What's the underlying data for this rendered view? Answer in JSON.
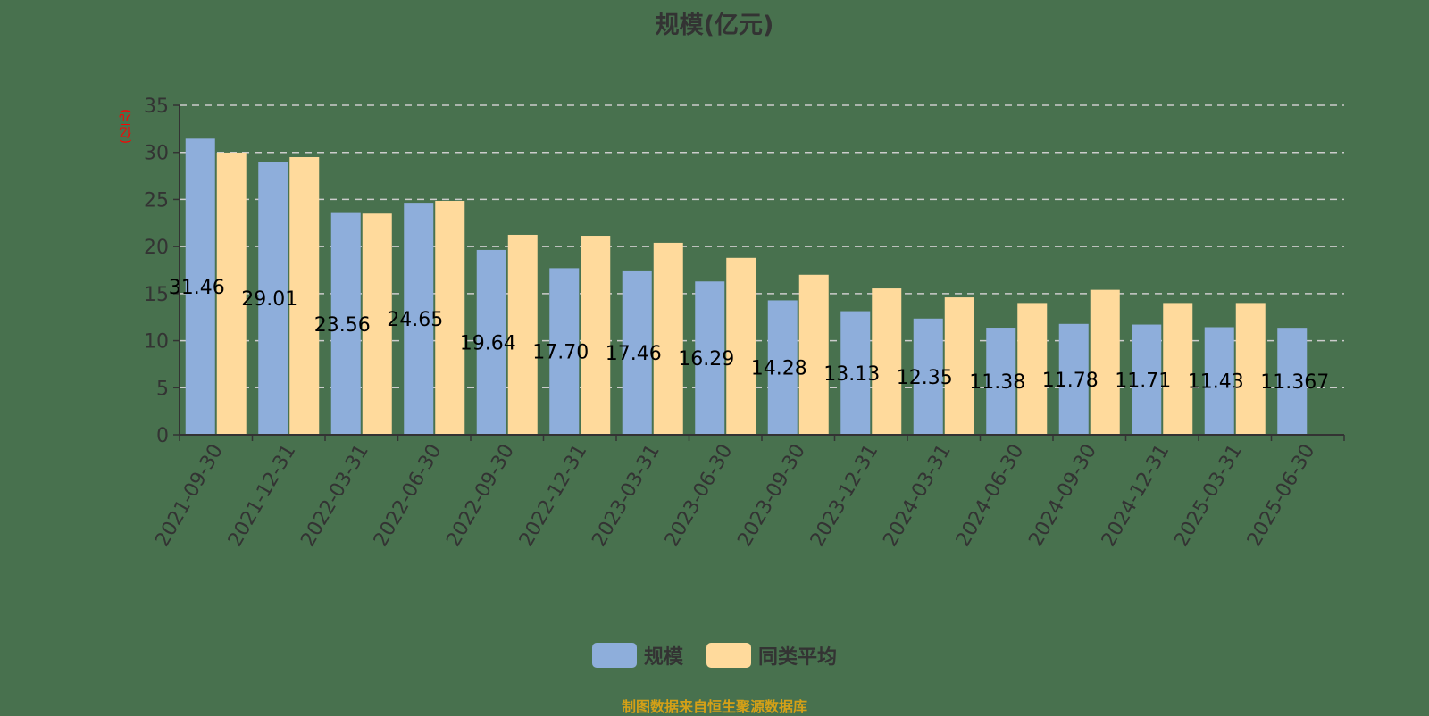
{
  "title": "规模(亿元)",
  "y_unit_label": "(亿元)",
  "legend": {
    "items": [
      {
        "label": "规模",
        "color": "#8eaedb"
      },
      {
        "label": "同类平均",
        "color": "#ffda9c"
      }
    ]
  },
  "source": "制图数据来自恒生聚源数据库",
  "colors": {
    "background": "#48714e",
    "grid": "#cccccc",
    "axis": "#333333",
    "label": "#000000"
  },
  "chart_data": {
    "type": "bar",
    "title": "规模(亿元)",
    "xlabel": "",
    "ylabel": "(亿元)",
    "ylim": [
      0,
      35
    ],
    "yticks": [
      0,
      5,
      10,
      15,
      20,
      25,
      30,
      35
    ],
    "grid": true,
    "legend_position": "bottom",
    "categories": [
      "2021-09-30",
      "2021-12-31",
      "2022-03-31",
      "2022-06-30",
      "2022-09-30",
      "2022-12-31",
      "2023-03-31",
      "2023-06-30",
      "2023-09-30",
      "2023-12-31",
      "2024-03-31",
      "2024-06-30",
      "2024-09-30",
      "2024-12-31",
      "2025-03-31",
      "2025-06-30"
    ],
    "series": [
      {
        "name": "规模",
        "values": [
          31.46,
          29.01,
          23.56,
          24.65,
          19.64,
          17.7,
          17.46,
          16.29,
          14.28,
          13.13,
          12.35,
          11.38,
          11.78,
          11.71,
          11.43,
          11.367
        ]
      },
      {
        "name": "同类平均",
        "values": [
          29.98,
          29.5,
          23.5,
          24.85,
          21.25,
          21.15,
          20.4,
          18.8,
          17.0,
          15.55,
          14.6,
          14.0,
          15.4,
          14.0,
          14.0,
          null
        ]
      }
    ],
    "data_labels": [
      "31.46",
      "29.01",
      "23.56",
      "24.65",
      "19.64",
      "17.70",
      "17.46",
      "16.29",
      "14.28",
      "13.13",
      "12.35",
      "11.38",
      "11.78",
      "11.71",
      "11.43",
      "11.367"
    ]
  }
}
